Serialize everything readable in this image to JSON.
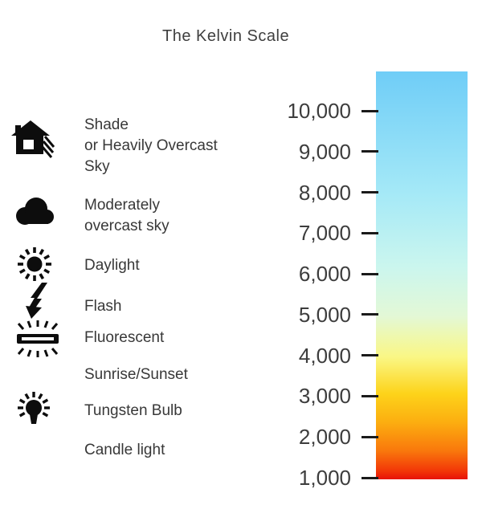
{
  "title": "The Kelvin Scale",
  "legend": {
    "items": [
      {
        "icon": "house-shade-icon",
        "lines": [
          "Shade",
          "or Heavily Overcast",
          "Sky"
        ]
      },
      {
        "icon": "cloud-icon",
        "lines": [
          "Moderately",
          "overcast sky"
        ]
      },
      {
        "icon": "sun-icon",
        "lines": [
          "Daylight"
        ]
      },
      {
        "icon": "flash-bolt-icon",
        "lines": [
          "Flash"
        ]
      },
      {
        "icon": "fluorescent-tube-icon",
        "lines": [
          "Fluorescent"
        ]
      },
      {
        "icon": null,
        "lines": [
          "Sunrise/Sunset"
        ]
      },
      {
        "icon": "light-bulb-icon",
        "lines": [
          "Tungsten Bulb"
        ]
      },
      {
        "icon": null,
        "lines": [
          "Candle light"
        ]
      }
    ]
  },
  "scale": {
    "tick_labels": [
      "10,000",
      "9,000",
      "8,000",
      "7,000",
      "6,000",
      "5,000",
      "4,000",
      "3,000",
      "2,000",
      "1,000"
    ],
    "gradient_stops": [
      {
        "offset": 0,
        "color": "#6fcdf7"
      },
      {
        "offset": 30,
        "color": "#a5e9f7"
      },
      {
        "offset": 48,
        "color": "#cbf6ee"
      },
      {
        "offset": 60,
        "color": "#e3f8d6"
      },
      {
        "offset": 70,
        "color": "#faf785"
      },
      {
        "offset": 79,
        "color": "#fdd31a"
      },
      {
        "offset": 86,
        "color": "#fcae10"
      },
      {
        "offset": 93,
        "color": "#f9780c"
      },
      {
        "offset": 98,
        "color": "#f23608"
      },
      {
        "offset": 100,
        "color": "#e81209"
      }
    ]
  },
  "colors": {
    "text": "#383838",
    "tick": "#1a1a1a",
    "icon": "#0d0d0d"
  }
}
